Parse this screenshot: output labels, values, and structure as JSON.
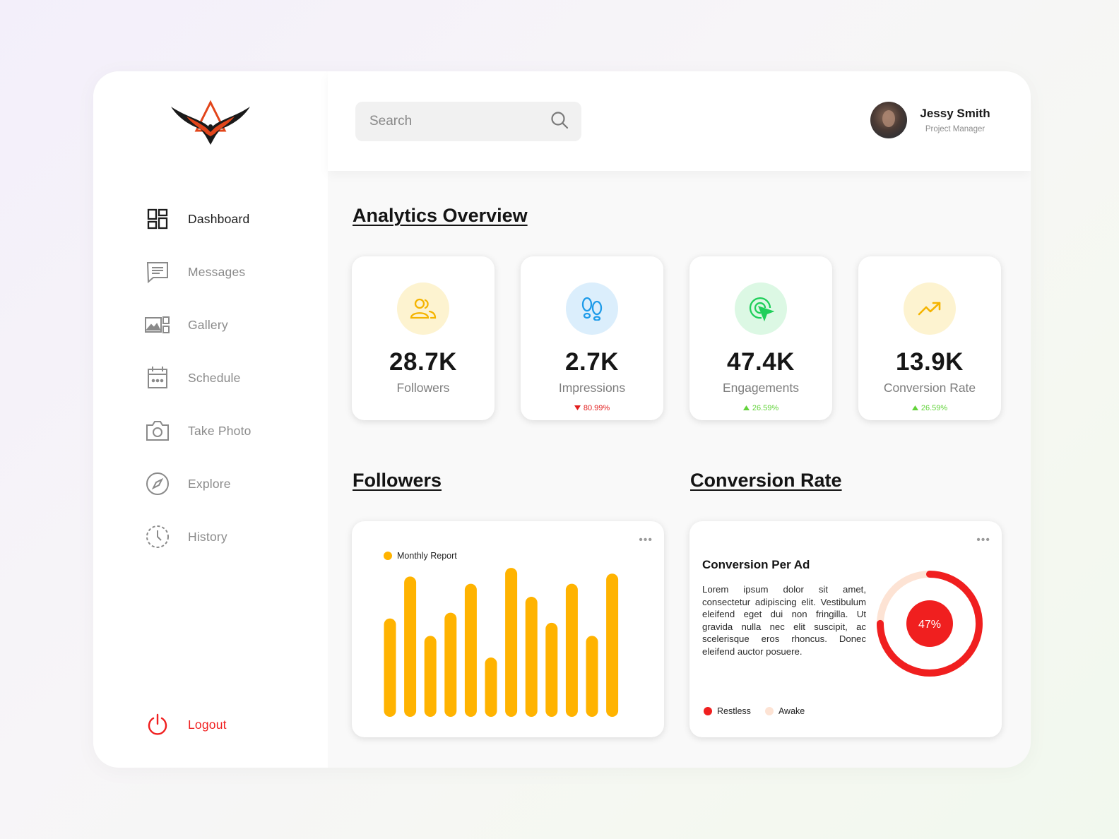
{
  "sidebar": {
    "items": [
      {
        "label": "Dashboard",
        "icon": "grid-icon",
        "active": true
      },
      {
        "label": "Messages",
        "icon": "message-icon"
      },
      {
        "label": "Gallery",
        "icon": "gallery-icon"
      },
      {
        "label": "Schedule",
        "icon": "calendar-icon"
      },
      {
        "label": "Take Photo",
        "icon": "camera-icon"
      },
      {
        "label": "Explore",
        "icon": "compass-icon"
      },
      {
        "label": "History",
        "icon": "history-icon"
      }
    ],
    "logout_label": "Logout"
  },
  "search": {
    "placeholder": "Search"
  },
  "user": {
    "name": "Jessy Smith",
    "role": "Project Manager"
  },
  "analytics": {
    "title": "Analytics Overview",
    "stats": [
      {
        "value": "28.7K",
        "label": "Followers",
        "icon": "users-icon",
        "icon_bg": "#fdf3d0",
        "icon_color": "#f5b400"
      },
      {
        "value": "2.7K",
        "label": "Impressions",
        "icon": "footprints-icon",
        "icon_bg": "#dbeefc",
        "icon_color": "#1e9be9",
        "delta": "80.99%",
        "trend": "down"
      },
      {
        "value": "47.4K",
        "label": "Engagements",
        "icon": "click-target-icon",
        "icon_bg": "#dcf8e4",
        "icon_color": "#1fcf5a",
        "delta": "26.59%",
        "trend": "up"
      },
      {
        "value": "13.9K",
        "label": "Conversion Rate",
        "icon": "trend-up-icon",
        "icon_bg": "#fdf3d0",
        "icon_color": "#f5b400",
        "delta": "26.59%",
        "trend": "up"
      }
    ]
  },
  "followers": {
    "title": "Followers",
    "legend": "Monthly Report"
  },
  "conversion": {
    "title": "Conversion Rate",
    "card_title": "Conversion Per Ad",
    "description": "Lorem ipsum dolor sit amet, consectetur adipiscing elit. Vestibulum eleifend eget dui non fringilla. Ut gravida nulla nec elit suscipit, ac scelerisque eros rhoncus. Donec eleifend auctor posuere.",
    "percent_label": "47%",
    "legend": [
      {
        "label": "Restless",
        "color": "#f01f1f"
      },
      {
        "label": "Awake",
        "color": "#fde3d4"
      }
    ]
  },
  "colors": {
    "accent": "#ffb300",
    "danger": "#f01f1f"
  },
  "chart_data": [
    {
      "type": "bar",
      "title": "",
      "series": [
        {
          "name": "Monthly Report",
          "values": [
            68,
            97,
            56,
            72,
            92,
            41,
            103,
            83,
            65,
            92,
            56,
            99
          ]
        }
      ],
      "ylim": [
        0,
        105
      ],
      "color": "#ffb300",
      "grid": false,
      "legend": "top-left"
    },
    {
      "type": "pie",
      "title": "Conversion Per Ad",
      "labels": [
        "Restless",
        "Awake"
      ],
      "values": [
        47,
        53
      ],
      "colors": [
        "#f01f1f",
        "#fde3d4"
      ],
      "center_label": "47%"
    }
  ]
}
